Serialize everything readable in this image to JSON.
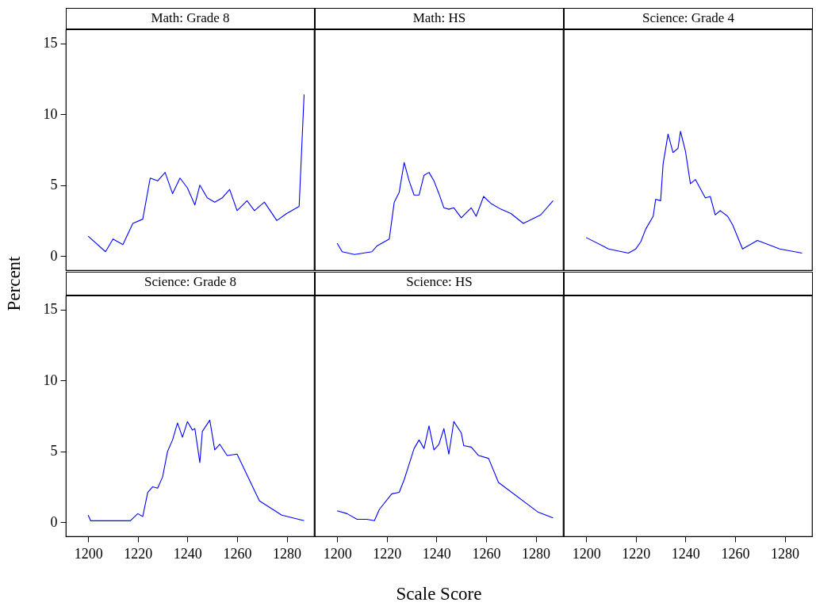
{
  "chart_data": [
    {
      "type": "line",
      "title": "Math: Grade 8",
      "ylabel": "Percent",
      "color": "#0000ff",
      "xlim": [
        1191,
        1291
      ],
      "ylim": [
        -1,
        16
      ],
      "xticks": [
        1200,
        1220,
        1240,
        1260,
        1280
      ],
      "yticks": [
        0,
        5,
        10,
        15
      ],
      "tick_labels": "y",
      "x": [
        1200,
        1207,
        1210,
        1214,
        1218,
        1222,
        1225,
        1228,
        1231,
        1234,
        1237,
        1240,
        1243,
        1245,
        1248,
        1251,
        1254,
        1257,
        1260,
        1264,
        1267,
        1271,
        1276,
        1280,
        1285,
        1287
      ],
      "values": [
        1.4,
        0.3,
        1.2,
        0.8,
        2.3,
        2.6,
        5.5,
        5.3,
        5.9,
        4.4,
        5.5,
        4.8,
        3.6,
        5.0,
        4.1,
        3.8,
        4.1,
        4.7,
        3.2,
        3.9,
        3.2,
        3.8,
        2.5,
        3.0,
        3.5,
        11.4
      ]
    },
    {
      "type": "line",
      "title": "Math: HS",
      "color": "#0000ff",
      "xlim": [
        1191,
        1291
      ],
      "ylim": [
        -1,
        16
      ],
      "xticks": [
        1200,
        1220,
        1240,
        1260,
        1280
      ],
      "yticks": [
        0,
        5,
        10,
        15
      ],
      "tick_labels": false,
      "x": [
        1200,
        1202,
        1207,
        1214,
        1216,
        1219,
        1221,
        1223,
        1225,
        1227,
        1229,
        1231,
        1233,
        1235,
        1237,
        1239,
        1241,
        1243,
        1245,
        1247,
        1250,
        1254,
        1256,
        1259,
        1262,
        1266,
        1270,
        1275,
        1282,
        1287
      ],
      "values": [
        0.9,
        0.3,
        0.1,
        0.3,
        0.7,
        1.0,
        1.2,
        3.8,
        4.5,
        6.6,
        5.3,
        4.3,
        4.3,
        5.7,
        5.9,
        5.3,
        4.4,
        3.4,
        3.3,
        3.4,
        2.7,
        3.4,
        2.8,
        4.2,
        3.7,
        3.3,
        3.0,
        2.3,
        2.9,
        3.9
      ]
    },
    {
      "type": "line",
      "title": "Science: Grade 4",
      "color": "#0000ff",
      "xlim": [
        1191,
        1291
      ],
      "ylim": [
        -1,
        16
      ],
      "xticks": [
        1200,
        1220,
        1240,
        1260,
        1280
      ],
      "yticks": [
        0,
        5,
        10,
        15
      ],
      "tick_labels": false,
      "x": [
        1200,
        1209,
        1217,
        1220,
        1222,
        1224,
        1227,
        1228,
        1230,
        1231,
        1233,
        1235,
        1237,
        1238,
        1240,
        1242,
        1244,
        1248,
        1250,
        1252,
        1254,
        1257,
        1259,
        1263,
        1269,
        1278,
        1287
      ],
      "values": [
        1.3,
        0.5,
        0.2,
        0.5,
        1.0,
        1.9,
        2.8,
        4.0,
        3.9,
        6.5,
        8.6,
        7.3,
        7.6,
        8.8,
        7.4,
        5.1,
        5.4,
        4.1,
        4.2,
        2.9,
        3.2,
        2.8,
        2.2,
        0.5,
        1.1,
        0.5,
        0.2
      ]
    },
    {
      "type": "line",
      "title": "Science: Grade 8",
      "color": "#0000ff",
      "xlim": [
        1191,
        1291
      ],
      "ylim": [
        -1,
        16
      ],
      "xticks": [
        1200,
        1220,
        1240,
        1260,
        1280
      ],
      "yticks": [
        0,
        5,
        10,
        15
      ],
      "x": [
        1200,
        1201,
        1217,
        1220,
        1222,
        1224,
        1226,
        1228,
        1230,
        1232,
        1234,
        1236,
        1238,
        1240,
        1242,
        1243,
        1245,
        1246,
        1249,
        1251,
        1253,
        1256,
        1260,
        1269,
        1278,
        1287
      ],
      "values": [
        0.5,
        0.1,
        0.1,
        0.6,
        0.4,
        2.1,
        2.5,
        2.4,
        3.2,
        5.0,
        5.8,
        7.0,
        6.0,
        7.1,
        6.5,
        6.6,
        4.2,
        6.4,
        7.2,
        5.1,
        5.5,
        4.7,
        4.8,
        1.5,
        0.5,
        0.1
      ]
    },
    {
      "type": "line",
      "title": "Science: HS",
      "xlabel": "Scale Score",
      "color": "#0000ff",
      "xlim": [
        1191,
        1291
      ],
      "ylim": [
        -1,
        16
      ],
      "xticks": [
        1200,
        1220,
        1240,
        1260,
        1280
      ],
      "yticks": [
        0,
        5,
        10,
        15
      ],
      "tick_labels": "x",
      "x": [
        1200,
        1204,
        1208,
        1212,
        1215,
        1217,
        1222,
        1225,
        1227,
        1229,
        1231,
        1233,
        1235,
        1237,
        1239,
        1241,
        1243,
        1245,
        1247,
        1250,
        1251,
        1254,
        1257,
        1261,
        1265,
        1281,
        1287
      ],
      "values": [
        0.8,
        0.6,
        0.2,
        0.2,
        0.1,
        0.9,
        2.0,
        2.1,
        3.0,
        4.1,
        5.2,
        5.8,
        5.2,
        6.8,
        5.1,
        5.5,
        6.6,
        4.8,
        7.1,
        6.3,
        5.4,
        5.3,
        4.7,
        4.5,
        2.8,
        0.7,
        0.3
      ]
    },
    {
      "type": "line",
      "color": "#0000ff",
      "xlim": [
        1191,
        1291
      ],
      "ylim": [
        -1,
        16
      ],
      "xticks": [
        1200,
        1220,
        1240,
        1260,
        1280
      ],
      "yticks": [
        0,
        5,
        10,
        15
      ],
      "tick_labels": "x"
    }
  ]
}
